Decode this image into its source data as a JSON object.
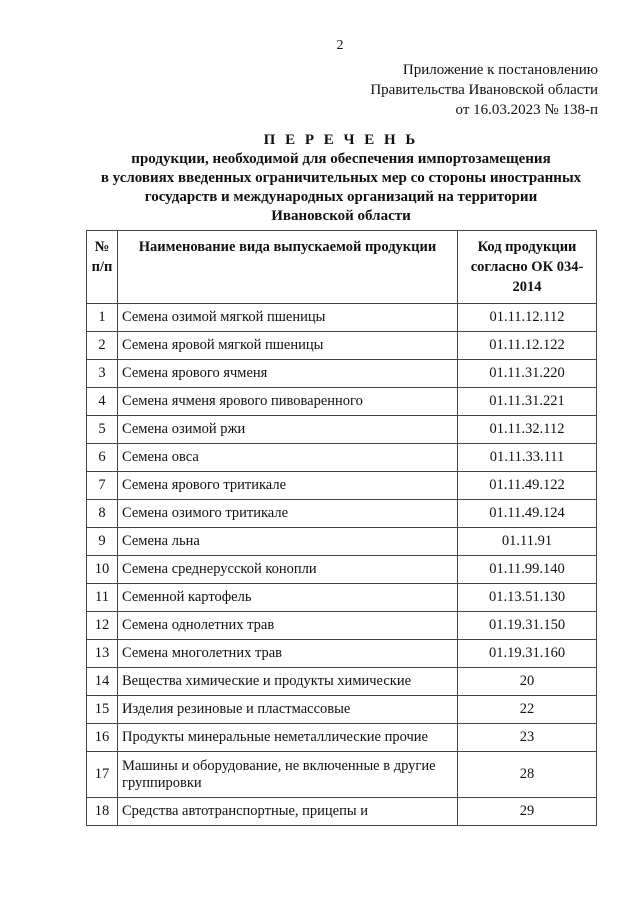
{
  "page_number": "2",
  "appendix": [
    "Приложение к постановлению",
    "Правительства Ивановской области",
    "от 16.03.2023 № 138-п"
  ],
  "title": {
    "heading": "П Е Р Е Ч Е Н Ь",
    "lines": [
      "продукции, необходимой для обеспечения импортозамещения",
      "в условиях введенных ограничительных мер со стороны иностранных",
      "государств и международных организаций на территории",
      "Ивановской области"
    ]
  },
  "table": {
    "headers": {
      "num": "№ п/п",
      "name": "Наименование вида выпускаемой продукции",
      "code": "Код продукции согласно ОК 034-2014"
    },
    "rows": [
      [
        "1",
        "Семена озимой мягкой пшеницы",
        "01.11.12.112"
      ],
      [
        "2",
        "Семена яровой мягкой пшеницы",
        "01.11.12.122"
      ],
      [
        "3",
        "Семена ярового ячменя",
        "01.11.31.220"
      ],
      [
        "4",
        "Семена ячменя ярового пивоваренного",
        "01.11.31.221"
      ],
      [
        "5",
        "Семена озимой ржи",
        "01.11.32.112"
      ],
      [
        "6",
        "Семена овса",
        "01.11.33.111"
      ],
      [
        "7",
        "Семена ярового тритикале",
        "01.11.49.122"
      ],
      [
        "8",
        "Семена озимого тритикале",
        "01.11.49.124"
      ],
      [
        "9",
        "Семена льна",
        "01.11.91"
      ],
      [
        "10",
        "Семена среднерусской конопли",
        "01.11.99.140"
      ],
      [
        "11",
        "Семенной картофель",
        "01.13.51.130"
      ],
      [
        "12",
        "Семена однолетних трав",
        "01.19.31.150"
      ],
      [
        "13",
        "Семена многолетних трав",
        "01.19.31.160"
      ],
      [
        "14",
        "Вещества химические и продукты химические",
        "20"
      ],
      [
        "15",
        "Изделия резиновые и пластмассовые",
        "22"
      ],
      [
        "16",
        "Продукты минеральные неметаллические прочие",
        "23"
      ],
      [
        "17",
        "Машины и оборудование, не включенные в другие группировки",
        "28"
      ],
      [
        "18",
        "Средства автотранспортные, прицепы и",
        "29"
      ]
    ]
  }
}
